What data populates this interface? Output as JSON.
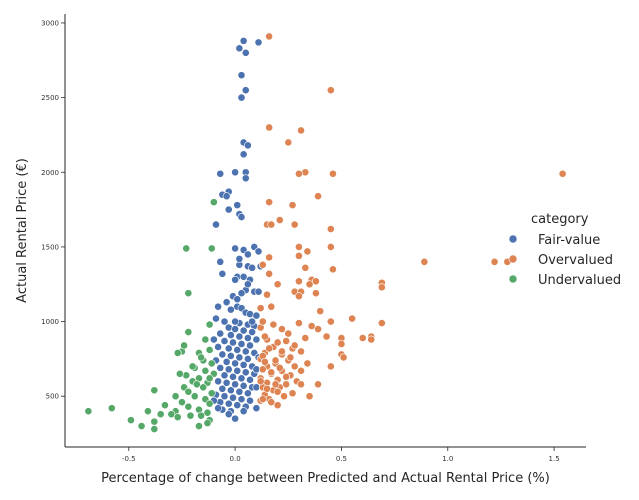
{
  "chart_data": {
    "type": "scatter",
    "xlabel": "Percentage of change between Predicted and Actual Rental Price (%)",
    "ylabel": "Actual Rental Price (€)",
    "xlim": [
      -0.8,
      1.65
    ],
    "ylim": [
      160,
      3060
    ],
    "x_ticks": [
      -0.5,
      0.0,
      0.5,
      1.0,
      1.5
    ],
    "x_tick_labels": [
      "-0.5",
      "0.0",
      "0.5",
      "1.0",
      "1.5"
    ],
    "y_ticks": [
      500,
      1000,
      1500,
      2000,
      2500,
      3000
    ],
    "y_tick_labels": [
      "500",
      "1000",
      "1500",
      "2000",
      "2500",
      "3000"
    ],
    "grid": false,
    "legend_title": "category",
    "legend_position": "right",
    "series": [
      {
        "name": "Fair-value",
        "color": "#4c72b0",
        "points": [
          [
            0.04,
            2880
          ],
          [
            0.11,
            2870
          ],
          [
            0.02,
            2830
          ],
          [
            0.05,
            2800
          ],
          [
            0.03,
            2650
          ],
          [
            0.05,
            2550
          ],
          [
            0.03,
            2500
          ],
          [
            0.04,
            2200
          ],
          [
            0.06,
            2180
          ],
          [
            0.04,
            2120
          ],
          [
            -0.07,
            1990
          ],
          [
            0.0,
            2000
          ],
          [
            0.05,
            2000
          ],
          [
            0.05,
            1960
          ],
          [
            -0.03,
            1870
          ],
          [
            -0.06,
            1850
          ],
          [
            -0.04,
            1840
          ],
          [
            0.01,
            1780
          ],
          [
            -0.03,
            1750
          ],
          [
            0.02,
            1720
          ],
          [
            0.03,
            1700
          ],
          [
            -0.09,
            1650
          ],
          [
            0.0,
            1490
          ],
          [
            0.04,
            1480
          ],
          [
            0.09,
            1500
          ],
          [
            0.11,
            1470
          ],
          [
            0.06,
            1450
          ],
          [
            -0.07,
            1400
          ],
          [
            0.02,
            1380
          ],
          [
            0.06,
            1370
          ],
          [
            0.08,
            1360
          ],
          [
            -0.06,
            1320
          ],
          [
            0.01,
            1300
          ],
          [
            0.04,
            1300
          ],
          [
            0.0,
            1280
          ],
          [
            0.07,
            1280
          ],
          [
            0.05,
            1210
          ],
          [
            0.09,
            1200
          ],
          [
            0.11,
            1200
          ],
          [
            0.03,
            1190
          ],
          [
            -0.01,
            1170
          ],
          [
            0.01,
            1150
          ],
          [
            -0.08,
            1100
          ],
          [
            0.01,
            1100
          ],
          [
            0.03,
            1090
          ],
          [
            -0.02,
            1080
          ],
          [
            0.05,
            1060
          ],
          [
            0.07,
            1050
          ],
          [
            0.1,
            1040
          ],
          [
            -0.09,
            1020
          ],
          [
            -0.05,
            1000
          ],
          [
            0.02,
            990
          ],
          [
            0.06,
            980
          ],
          [
            0.09,
            970
          ],
          [
            -0.03,
            960
          ],
          [
            0.0,
            950
          ],
          [
            0.04,
            940
          ],
          [
            0.08,
            930
          ],
          [
            -0.07,
            920
          ],
          [
            -0.02,
            910
          ],
          [
            0.02,
            900
          ],
          [
            0.06,
            890
          ],
          [
            0.1,
            880
          ],
          [
            -0.05,
            870
          ],
          [
            -0.01,
            860
          ],
          [
            0.03,
            850
          ],
          [
            0.07,
            840
          ],
          [
            -0.08,
            830
          ],
          [
            -0.03,
            820
          ],
          [
            0.01,
            810
          ],
          [
            0.05,
            800
          ],
          [
            0.09,
            790
          ],
          [
            -0.06,
            780
          ],
          [
            -0.02,
            770
          ],
          [
            0.02,
            760
          ],
          [
            0.06,
            750
          ],
          [
            -0.09,
            740
          ],
          [
            -0.04,
            730
          ],
          [
            0.0,
            720
          ],
          [
            0.04,
            710
          ],
          [
            0.08,
            700
          ],
          [
            -0.07,
            690
          ],
          [
            -0.03,
            680
          ],
          [
            0.01,
            670
          ],
          [
            0.05,
            660
          ],
          [
            0.09,
            650
          ],
          [
            -0.05,
            640
          ],
          [
            -0.01,
            630
          ],
          [
            0.03,
            620
          ],
          [
            0.07,
            610
          ],
          [
            -0.08,
            600
          ],
          [
            -0.04,
            590
          ],
          [
            0.0,
            580
          ],
          [
            0.04,
            570
          ],
          [
            0.08,
            560
          ],
          [
            -0.06,
            550
          ],
          [
            -0.02,
            540
          ],
          [
            0.02,
            530
          ],
          [
            0.06,
            520
          ],
          [
            -0.09,
            510
          ],
          [
            -0.05,
            500
          ],
          [
            -0.01,
            490
          ],
          [
            0.03,
            480
          ],
          [
            0.07,
            470
          ],
          [
            -0.07,
            460
          ],
          [
            -0.03,
            450
          ],
          [
            0.01,
            440
          ],
          [
            0.05,
            430
          ],
          [
            0.1,
            420
          ],
          [
            -0.06,
            410
          ],
          [
            -0.02,
            400
          ],
          [
            0.04,
            400
          ],
          [
            -0.03,
            380
          ],
          [
            0.0,
            350
          ],
          [
            -0.08,
            420
          ],
          [
            -0.1,
            470
          ],
          [
            0.1,
            560
          ],
          [
            0.1,
            680
          ],
          [
            0.11,
            760
          ],
          [
            -0.1,
            880
          ],
          [
            0.0,
            1000
          ],
          [
            0.08,
            1000
          ],
          [
            -0.04,
            1130
          ],
          [
            0.06,
            1250
          ],
          [
            0.12,
            1370
          ],
          [
            0.02,
            1420
          ]
        ]
      },
      {
        "name": "Overvalued",
        "color": "#dd8452",
        "points": [
          [
            0.16,
            2910
          ],
          [
            0.45,
            2550
          ],
          [
            0.16,
            2300
          ],
          [
            0.31,
            2280
          ],
          [
            0.25,
            2200
          ],
          [
            0.33,
            2000
          ],
          [
            0.3,
            1990
          ],
          [
            0.46,
            1990
          ],
          [
            1.54,
            1990
          ],
          [
            0.39,
            1840
          ],
          [
            0.16,
            1800
          ],
          [
            0.27,
            1780
          ],
          [
            0.21,
            1680
          ],
          [
            0.15,
            1650
          ],
          [
            0.17,
            1650
          ],
          [
            0.28,
            1650
          ],
          [
            0.45,
            1620
          ],
          [
            0.3,
            1500
          ],
          [
            0.34,
            1470
          ],
          [
            0.45,
            1500
          ],
          [
            0.16,
            1430
          ],
          [
            0.3,
            1440
          ],
          [
            0.89,
            1400
          ],
          [
            1.22,
            1400
          ],
          [
            1.28,
            1400
          ],
          [
            0.13,
            1380
          ],
          [
            0.16,
            1320
          ],
          [
            0.33,
            1360
          ],
          [
            0.46,
            1350
          ],
          [
            0.36,
            1280
          ],
          [
            0.38,
            1270
          ],
          [
            0.69,
            1260
          ],
          [
            0.2,
            1250
          ],
          [
            0.3,
            1270
          ],
          [
            0.35,
            1250
          ],
          [
            0.69,
            1230
          ],
          [
            0.28,
            1200
          ],
          [
            0.31,
            1200
          ],
          [
            0.38,
            1190
          ],
          [
            0.15,
            1180
          ],
          [
            0.3,
            1170
          ],
          [
            0.17,
            1100
          ],
          [
            0.12,
            1090
          ],
          [
            0.4,
            1070
          ],
          [
            0.55,
            1020
          ],
          [
            0.45,
            1000
          ],
          [
            0.3,
            990
          ],
          [
            0.69,
            990
          ],
          [
            0.36,
            970
          ],
          [
            0.12,
            960
          ],
          [
            0.22,
            950
          ],
          [
            0.39,
            950
          ],
          [
            0.5,
            890
          ],
          [
            0.64,
            900
          ],
          [
            0.6,
            890
          ],
          [
            0.43,
            900
          ],
          [
            0.33,
            890
          ],
          [
            0.15,
            880
          ],
          [
            0.24,
            870
          ],
          [
            0.64,
            880
          ],
          [
            0.5,
            850
          ],
          [
            0.18,
            830
          ],
          [
            0.27,
            820
          ],
          [
            0.31,
            800
          ],
          [
            0.14,
            790
          ],
          [
            0.22,
            780
          ],
          [
            0.5,
            780
          ],
          [
            0.51,
            760
          ],
          [
            0.12,
            750
          ],
          [
            0.25,
            740
          ],
          [
            0.19,
            720
          ],
          [
            0.34,
            720
          ],
          [
            0.15,
            700
          ],
          [
            0.28,
            700
          ],
          [
            0.45,
            700
          ],
          [
            0.13,
            680
          ],
          [
            0.22,
            670
          ],
          [
            0.31,
            670
          ],
          [
            0.17,
            650
          ],
          [
            0.26,
            640
          ],
          [
            0.12,
            620
          ],
          [
            0.2,
            610
          ],
          [
            0.29,
            600
          ],
          [
            0.15,
            590
          ],
          [
            0.24,
            580
          ],
          [
            0.39,
            580
          ],
          [
            0.31,
            580
          ],
          [
            0.13,
            560
          ],
          [
            0.21,
            560
          ],
          [
            0.18,
            540
          ],
          [
            0.27,
            520
          ],
          [
            0.14,
            510
          ],
          [
            0.23,
            500
          ],
          [
            0.35,
            500
          ],
          [
            0.16,
            480
          ],
          [
            0.12,
            470
          ],
          [
            0.17,
            460
          ],
          [
            0.2,
            440
          ],
          [
            0.13,
            1000
          ],
          [
            0.18,
            980
          ],
          [
            0.25,
            920
          ],
          [
            0.14,
            900
          ],
          [
            0.2,
            860
          ],
          [
            0.28,
            840
          ],
          [
            0.16,
            820
          ],
          [
            0.22,
            800
          ],
          [
            0.13,
            770
          ],
          [
            0.19,
            740
          ],
          [
            0.26,
            760
          ],
          [
            0.14,
            730
          ],
          [
            0.21,
            690
          ],
          [
            0.17,
            660
          ],
          [
            0.24,
            630
          ],
          [
            0.12,
            600
          ],
          [
            0.19,
            580
          ],
          [
            0.15,
            550
          ],
          [
            0.2,
            530
          ],
          [
            0.13,
            480
          ]
        ]
      },
      {
        "name": "Undervalued",
        "color": "#55a868",
        "points": [
          [
            -0.1,
            1800
          ],
          [
            -0.23,
            1490
          ],
          [
            -0.11,
            1490
          ],
          [
            -0.22,
            1190
          ],
          [
            -0.12,
            980
          ],
          [
            -0.22,
            930
          ],
          [
            -0.14,
            880
          ],
          [
            -0.25,
            800
          ],
          [
            -0.12,
            810
          ],
          [
            -0.17,
            790
          ],
          [
            -0.27,
            790
          ],
          [
            -0.15,
            740
          ],
          [
            -0.11,
            720
          ],
          [
            -0.19,
            690
          ],
          [
            -0.14,
            670
          ],
          [
            -0.23,
            640
          ],
          [
            -0.1,
            650
          ],
          [
            -0.17,
            620
          ],
          [
            -0.2,
            600
          ],
          [
            -0.13,
            590
          ],
          [
            -0.24,
            560
          ],
          [
            -0.15,
            560
          ],
          [
            -0.38,
            540
          ],
          [
            -0.22,
            530
          ],
          [
            -0.11,
            520
          ],
          [
            -0.19,
            500
          ],
          [
            -0.28,
            500
          ],
          [
            -0.14,
            480
          ],
          [
            -0.25,
            460
          ],
          [
            -0.12,
            450
          ],
          [
            -0.33,
            440
          ],
          [
            -0.22,
            430
          ],
          [
            -0.17,
            410
          ],
          [
            -0.41,
            400
          ],
          [
            -0.58,
            420
          ],
          [
            -0.69,
            400
          ],
          [
            -0.28,
            400
          ],
          [
            -0.13,
            390
          ],
          [
            -0.3,
            380
          ],
          [
            -0.35,
            380
          ],
          [
            -0.21,
            370
          ],
          [
            -0.27,
            360
          ],
          [
            -0.16,
            370
          ],
          [
            -0.49,
            340
          ],
          [
            -0.38,
            330
          ],
          [
            -0.12,
            340
          ],
          [
            -0.44,
            300
          ],
          [
            -0.38,
            280
          ],
          [
            -0.17,
            300
          ],
          [
            -0.13,
            320
          ],
          [
            -0.24,
            840
          ],
          [
            -0.16,
            760
          ],
          [
            -0.2,
            700
          ],
          [
            -0.26,
            650
          ],
          [
            -0.12,
            620
          ],
          [
            -0.18,
            580
          ]
        ]
      }
    ]
  }
}
